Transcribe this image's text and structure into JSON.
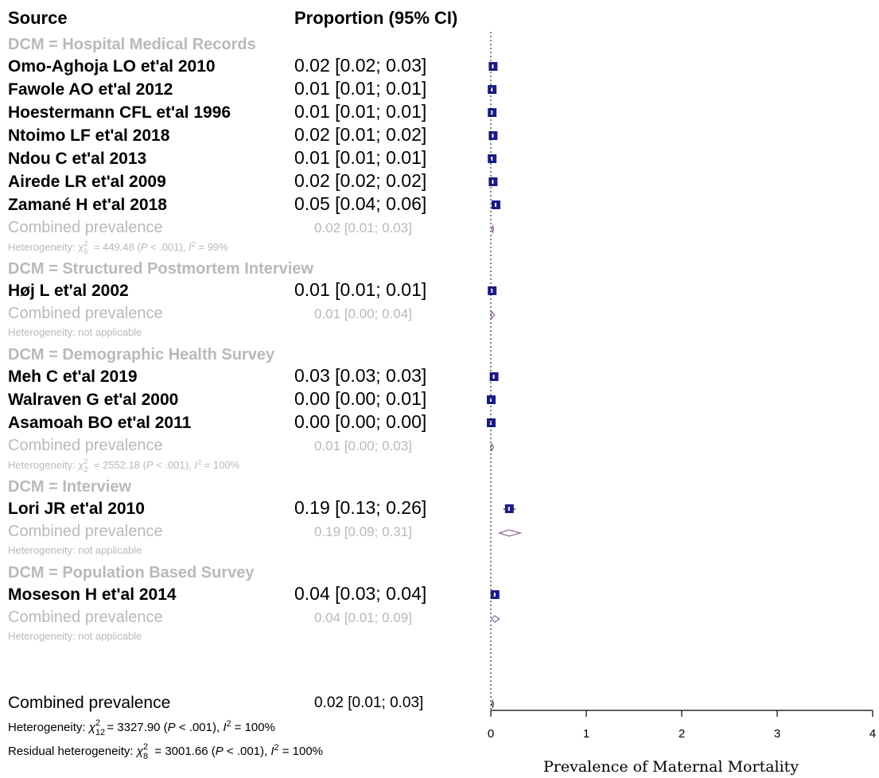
{
  "chart_data": {
    "type": "forest",
    "headers": {
      "source": "Source",
      "estimate": "Proportion (95% CI)"
    },
    "xlabel": "Prevalence of Maternal Mortality",
    "xlim": [
      0,
      4
    ],
    "xticks": [
      "0",
      "1",
      "2",
      "3",
      "4"
    ],
    "reference_line": 0,
    "groups": [
      {
        "label": "DCM = Hospital Medical Records",
        "studies": [
          {
            "name": "Omo-Aghoja LO et'al 2010",
            "est": 0.02,
            "lo": 0.02,
            "hi": 0.03,
            "ci": "0.02 [0.02; 0.03]"
          },
          {
            "name": "Fawole AO et'al 2012",
            "est": 0.01,
            "lo": 0.01,
            "hi": 0.01,
            "ci": "0.01 [0.01; 0.01]"
          },
          {
            "name": "Hoestermann CFL et'al 1996",
            "est": 0.01,
            "lo": 0.01,
            "hi": 0.01,
            "ci": "0.01 [0.01; 0.01]"
          },
          {
            "name": "Ntoimo LF et'al 2018",
            "est": 0.02,
            "lo": 0.01,
            "hi": 0.02,
            "ci": "0.02 [0.01; 0.02]"
          },
          {
            "name": "Ndou C et'al 2013",
            "est": 0.01,
            "lo": 0.01,
            "hi": 0.01,
            "ci": "0.01 [0.01; 0.01]"
          },
          {
            "name": "Airede LR et'al 2009",
            "est": 0.02,
            "lo": 0.02,
            "hi": 0.02,
            "ci": "0.02 [0.02; 0.02]"
          },
          {
            "name": "Zamané H et'al 2018",
            "est": 0.05,
            "lo": 0.04,
            "hi": 0.06,
            "ci": "0.05 [0.04; 0.06]"
          }
        ],
        "combined": {
          "label": "Combined prevalence",
          "est": 0.02,
          "lo": 0.01,
          "hi": 0.03,
          "ci": "0.02 [0.01; 0.03]"
        },
        "heterogeneity": {
          "prefix": "Heterogeneity: ",
          "chi": "χ",
          "sup": "2",
          "sub": "6",
          "rest": " = 449.48 (",
          "p": "P",
          "rest2": " < .001), ",
          "i": "I",
          "isup": "2",
          "rest3": " = 99%",
          "text": ""
        }
      },
      {
        "label": "DCM = Structured Postmortem Interview",
        "studies": [
          {
            "name": "Høj L et'al 2002",
            "est": 0.01,
            "lo": 0.01,
            "hi": 0.01,
            "ci": "0.01 [0.01; 0.01]"
          }
        ],
        "combined": {
          "label": "Combined prevalence",
          "est": 0.01,
          "lo": 0.0,
          "hi": 0.04,
          "ci": "0.01 [0.00; 0.04]"
        },
        "heterogeneity": {
          "text": "Heterogeneity: not applicable"
        }
      },
      {
        "label": "DCM = Demographic Health Survey",
        "studies": [
          {
            "name": "Meh C et'al 2019",
            "est": 0.03,
            "lo": 0.03,
            "hi": 0.03,
            "ci": "0.03 [0.03; 0.03]"
          },
          {
            "name": "Walraven G et'al 2000",
            "est": 0.0,
            "lo": 0.0,
            "hi": 0.01,
            "ci": "0.00 [0.00; 0.01]"
          },
          {
            "name": "Asamoah BO et'al 2011",
            "est": 0.0,
            "lo": 0.0,
            "hi": 0.0,
            "ci": "0.00 [0.00; 0.00]"
          }
        ],
        "combined": {
          "label": "Combined prevalence",
          "est": 0.01,
          "lo": 0.0,
          "hi": 0.03,
          "ci": "0.01 [0.00; 0.03]"
        },
        "heterogeneity": {
          "prefix": "Heterogeneity: ",
          "chi": "χ",
          "sup": "2",
          "sub": "2",
          "rest": " = 2552.18 (",
          "p": "P",
          "rest2": " < .001), ",
          "i": "I",
          "isup": "2",
          "rest3": " = 100%",
          "text": ""
        }
      },
      {
        "label": "DCM = Interview",
        "studies": [
          {
            "name": "Lori JR et'al 2010",
            "est": 0.19,
            "lo": 0.13,
            "hi": 0.26,
            "ci": "0.19 [0.13; 0.26]"
          }
        ],
        "combined": {
          "label": "Combined prevalence",
          "est": 0.19,
          "lo": 0.09,
          "hi": 0.31,
          "ci": "0.19 [0.09; 0.31]"
        },
        "heterogeneity": {
          "text": "Heterogeneity: not applicable"
        }
      },
      {
        "label": "DCM = Population Based Survey",
        "studies": [
          {
            "name": "Moseson H et'al 2014",
            "est": 0.04,
            "lo": 0.03,
            "hi": 0.04,
            "ci": "0.04 [0.03; 0.04]"
          }
        ],
        "combined": {
          "label": "Combined prevalence",
          "est": 0.04,
          "lo": 0.01,
          "hi": 0.09,
          "ci": "0.04 [0.01; 0.09]"
        },
        "heterogeneity": {
          "text": "Heterogeneity: not applicable"
        }
      }
    ],
    "overall": {
      "label": "Combined prevalence",
      "est": 0.02,
      "lo": 0.01,
      "hi": 0.03,
      "ci": "0.02 [0.01; 0.03]",
      "heterogeneity": {
        "prefix": "Heterogeneity: ",
        "chi": "χ",
        "sup": "2",
        "sub": "12",
        "rest": " = 3327.90 (",
        "p": "P",
        "rest2": " < .001), ",
        "i": "I",
        "isup": "2",
        "rest3": " = 100%"
      },
      "residual": {
        "prefix": "Residual heterogeneity: ",
        "chi": "χ",
        "sup": "2",
        "sub": "8",
        "rest": " = 3001.66 (",
        "p": "P",
        "rest2": " < .001), ",
        "i": "I",
        "isup": "2",
        "rest3": " = 100%"
      }
    },
    "colors": {
      "box": "#1b1b86",
      "study_text": "#000000",
      "subgroup_text": "#b9b9b9",
      "diamond": "#8c6b9a"
    }
  }
}
